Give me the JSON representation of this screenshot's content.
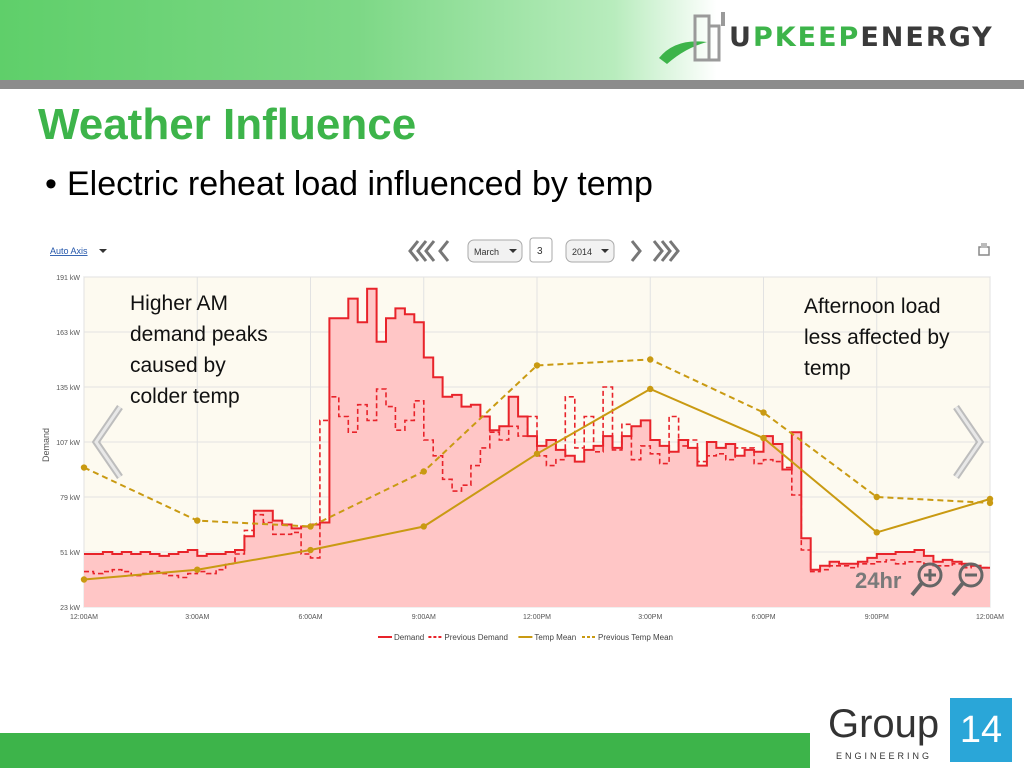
{
  "header": {
    "logo_prefix": "U",
    "logo_green": "PKEEP",
    "logo_dark": "ENERGY"
  },
  "slide": {
    "title": "Weather Influence",
    "bullet": "Electric reheat load influenced by temp"
  },
  "annotations": {
    "am": "Higher AM demand peaks caused by colder temp",
    "pm": "Afternoon load less affected by temp"
  },
  "toolbar": {
    "auto_axis": "Auto Axis",
    "month": "March",
    "day": "3",
    "year": "2014",
    "range": "24hr"
  },
  "footer": {
    "brand_word": "Group",
    "brand_number": "14",
    "brand_sub": "ENGINEERING"
  },
  "colors": {
    "accent_green": "#3db44a",
    "demand": "#e8232a",
    "demand_fill": "#ffc6c6",
    "temp": "#c99a12",
    "plot_bg": "#fdfaf0"
  },
  "chart_data": {
    "type": "line",
    "ylabel": "Demand",
    "ylim": [
      23,
      191
    ],
    "yticks": [
      "23 kW",
      "51 kW",
      "79 kW",
      "107 kW",
      "135 kW",
      "163 kW",
      "191 kW"
    ],
    "xticks": [
      "12:00AM",
      "3:00AM",
      "6:00AM",
      "9:00AM",
      "12:00PM",
      "3:00PM",
      "6:00PM",
      "9:00PM",
      "12:00AM"
    ],
    "x_hours_range": [
      0,
      24
    ],
    "series": [
      {
        "name": "Demand",
        "style": "solid-step-area",
        "color": "#e8232a",
        "x": [
          0,
          0.25,
          0.5,
          0.75,
          1,
          1.25,
          1.5,
          1.75,
          2,
          2.25,
          2.5,
          2.75,
          3,
          3.25,
          3.5,
          3.75,
          4,
          4.25,
          4.5,
          4.75,
          5,
          5.25,
          5.5,
          5.75,
          6,
          6.25,
          6.5,
          6.75,
          7,
          7.25,
          7.5,
          7.75,
          8,
          8.25,
          8.5,
          8.75,
          9,
          9.25,
          9.5,
          9.75,
          10,
          10.25,
          10.5,
          10.75,
          11,
          11.25,
          11.5,
          11.75,
          12,
          12.25,
          12.5,
          12.75,
          13,
          13.25,
          13.5,
          13.75,
          14,
          14.25,
          14.5,
          14.75,
          15,
          15.25,
          15.5,
          15.75,
          16,
          16.25,
          16.5,
          16.75,
          17,
          17.25,
          17.5,
          17.75,
          18,
          18.25,
          18.5,
          18.75,
          19,
          19.25,
          19.5,
          19.75,
          20,
          20.25,
          20.5,
          20.75,
          21,
          21.25,
          21.5,
          21.75,
          22,
          22.25,
          22.5,
          22.75,
          23,
          23.25,
          23.5,
          23.75
        ],
        "values": [
          50,
          50,
          51,
          50,
          51,
          50,
          51,
          50,
          49,
          50,
          51,
          52,
          49,
          50,
          50,
          51,
          52,
          59,
          72,
          72,
          67,
          65,
          63,
          64,
          65,
          66,
          170,
          170,
          180,
          168,
          185,
          158,
          170,
          175,
          172,
          168,
          150,
          140,
          130,
          131,
          125,
          126,
          120,
          113,
          115,
          130,
          120,
          110,
          105,
          108,
          103,
          100,
          97,
          103,
          105,
          110,
          104,
          110,
          115,
          118,
          108,
          105,
          102,
          108,
          104,
          95,
          107,
          104,
          106,
          100,
          103,
          102,
          110,
          106,
          93,
          112,
          58,
          42,
          44,
          46,
          45,
          45,
          46,
          48,
          50,
          50,
          51,
          51,
          52,
          49,
          46,
          47,
          46,
          45,
          44,
          43
        ]
      },
      {
        "name": "Previous Demand",
        "style": "dashed-step",
        "color": "#e8232a",
        "x": [
          0,
          0.25,
          0.5,
          0.75,
          1,
          1.25,
          1.5,
          1.75,
          2,
          2.25,
          2.5,
          2.75,
          3,
          3.25,
          3.5,
          3.75,
          4,
          4.25,
          4.5,
          4.75,
          5,
          5.25,
          5.5,
          5.75,
          6,
          6.25,
          6.5,
          6.75,
          7,
          7.25,
          7.5,
          7.75,
          8,
          8.25,
          8.5,
          8.75,
          9,
          9.25,
          9.5,
          9.75,
          10,
          10.25,
          10.5,
          10.75,
          11,
          11.25,
          11.5,
          11.75,
          12,
          12.25,
          12.5,
          12.75,
          13,
          13.25,
          13.5,
          13.75,
          14,
          14.25,
          14.5,
          14.75,
          15,
          15.25,
          15.5,
          15.75,
          16,
          16.25,
          16.5,
          16.75,
          17,
          17.25,
          17.5,
          17.75,
          18,
          18.25,
          18.5,
          18.75,
          19,
          19.25,
          19.5,
          19.75,
          20,
          20.25,
          20.5,
          20.75,
          21,
          21.25,
          21.5,
          21.75,
          22,
          22.25,
          22.5,
          22.75,
          23,
          23.25,
          23.5,
          23.75
        ],
        "values": [
          41,
          40,
          41,
          42,
          41,
          39,
          40,
          41,
          40,
          39,
          38,
          40,
          41,
          40,
          42,
          45,
          50,
          62,
          70,
          66,
          60,
          60,
          61,
          50,
          48,
          118,
          130,
          120,
          112,
          126,
          118,
          134,
          125,
          113,
          118,
          128,
          108,
          100,
          88,
          82,
          85,
          95,
          104,
          112,
          108,
          115,
          110,
          120,
          100,
          95,
          98,
          130,
          104,
          120,
          102,
          135,
          103,
          116,
          98,
          105,
          101,
          96,
          120,
          105,
          108,
          97,
          100,
          101,
          98,
          104,
          104,
          96,
          98,
          97,
          94,
          80,
          52,
          41,
          42,
          44,
          44,
          43,
          45,
          45,
          46,
          47,
          45,
          46,
          46,
          45,
          44,
          44,
          45,
          43,
          44,
          43
        ]
      },
      {
        "name": "Temp Mean",
        "style": "solid-line-markers",
        "color": "#c99a12",
        "x": [
          0,
          3,
          6,
          9,
          12,
          15,
          18,
          21,
          24
        ],
        "values": [
          37,
          42,
          52,
          64,
          101,
          134,
          109,
          61,
          78
        ]
      },
      {
        "name": "Previous Temp Mean",
        "style": "dashed-line-markers",
        "color": "#c99a12",
        "x": [
          0,
          3,
          6,
          9,
          12,
          15,
          18,
          21,
          24
        ],
        "values": [
          94,
          67,
          64,
          92,
          146,
          149,
          122,
          79,
          76
        ]
      }
    ],
    "grid": true,
    "legend_position": "bottom-center"
  }
}
